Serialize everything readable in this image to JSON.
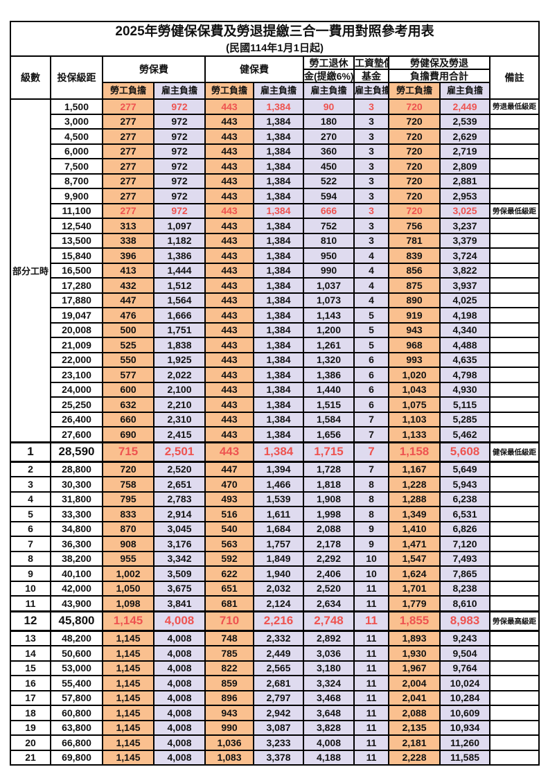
{
  "title": {
    "line1": "2025年勞健保保費及勞退提繳三合一費用對照參考用表",
    "line2": "(民國114年1月1日起)"
  },
  "colors": {
    "employee_bg": "#FAC08F",
    "employer_bg": "#DFDBEF",
    "value_red": "#EE5350",
    "note_red": "#FF3232",
    "ink": "#111111",
    "border": "#000000"
  },
  "table": {
    "header": {
      "level": "級數",
      "bracket": "投保級距",
      "labor_fee": "勞保費",
      "health_fee": "健保費",
      "pension_l1": "勞工退休",
      "pension_l2": "金(提繳6%)",
      "wage_fund_l1": "工資墊償",
      "wage_fund_l2": "基金",
      "total_l1": "勞健保及勞退",
      "total_l2": "負擔費用合計",
      "employee_burden": "勞工負擔",
      "employer_burden": "雇主負擔",
      "remark": "備註"
    },
    "part_time_label": "部分工時",
    "rows": [
      {
        "level": "",
        "bracket": "1,500",
        "values": [
          "277",
          "972",
          "443",
          "1,384",
          "90",
          "3",
          "720",
          "2,449"
        ],
        "note": "勞退最低級距",
        "highlight": "red"
      },
      {
        "level": "",
        "bracket": "3,000",
        "values": [
          "277",
          "972",
          "443",
          "1,384",
          "180",
          "3",
          "720",
          "2,539"
        ],
        "note": "",
        "highlight": ""
      },
      {
        "level": "",
        "bracket": "4,500",
        "values": [
          "277",
          "972",
          "443",
          "1,384",
          "270",
          "3",
          "720",
          "2,629"
        ],
        "note": "",
        "highlight": ""
      },
      {
        "level": "",
        "bracket": "6,000",
        "values": [
          "277",
          "972",
          "443",
          "1,384",
          "360",
          "3",
          "720",
          "2,719"
        ],
        "note": "",
        "highlight": ""
      },
      {
        "level": "",
        "bracket": "7,500",
        "values": [
          "277",
          "972",
          "443",
          "1,384",
          "450",
          "3",
          "720",
          "2,809"
        ],
        "note": "",
        "highlight": ""
      },
      {
        "level": "",
        "bracket": "8,700",
        "values": [
          "277",
          "972",
          "443",
          "1,384",
          "522",
          "3",
          "720",
          "2,881"
        ],
        "note": "",
        "highlight": ""
      },
      {
        "level": "",
        "bracket": "9,900",
        "values": [
          "277",
          "972",
          "443",
          "1,384",
          "594",
          "3",
          "720",
          "2,953"
        ],
        "note": "",
        "highlight": ""
      },
      {
        "level": "",
        "bracket": "11,100",
        "values": [
          "277",
          "972",
          "443",
          "1,384",
          "666",
          "3",
          "720",
          "3,025"
        ],
        "note": "勞保最低級距",
        "highlight": "red"
      },
      {
        "level": "",
        "bracket": "12,540",
        "values": [
          "313",
          "1,097",
          "443",
          "1,384",
          "752",
          "3",
          "756",
          "3,237"
        ],
        "note": "",
        "highlight": ""
      },
      {
        "level": "",
        "bracket": "13,500",
        "values": [
          "338",
          "1,182",
          "443",
          "1,384",
          "810",
          "3",
          "781",
          "3,379"
        ],
        "note": "",
        "highlight": ""
      },
      {
        "level": "",
        "bracket": "15,840",
        "values": [
          "396",
          "1,386",
          "443",
          "1,384",
          "950",
          "4",
          "839",
          "3,724"
        ],
        "note": "",
        "highlight": ""
      },
      {
        "level": "",
        "bracket": "16,500",
        "values": [
          "413",
          "1,444",
          "443",
          "1,384",
          "990",
          "4",
          "856",
          "3,822"
        ],
        "note": "",
        "highlight": ""
      },
      {
        "level": "",
        "bracket": "17,280",
        "values": [
          "432",
          "1,512",
          "443",
          "1,384",
          "1,037",
          "4",
          "875",
          "3,937"
        ],
        "note": "",
        "highlight": ""
      },
      {
        "level": "",
        "bracket": "17,880",
        "values": [
          "447",
          "1,564",
          "443",
          "1,384",
          "1,073",
          "4",
          "890",
          "4,025"
        ],
        "note": "",
        "highlight": ""
      },
      {
        "level": "",
        "bracket": "19,047",
        "values": [
          "476",
          "1,666",
          "443",
          "1,384",
          "1,143",
          "5",
          "919",
          "4,198"
        ],
        "note": "",
        "highlight": ""
      },
      {
        "level": "",
        "bracket": "20,008",
        "values": [
          "500",
          "1,751",
          "443",
          "1,384",
          "1,200",
          "5",
          "943",
          "4,340"
        ],
        "note": "",
        "highlight": ""
      },
      {
        "level": "",
        "bracket": "21,009",
        "values": [
          "525",
          "1,838",
          "443",
          "1,384",
          "1,261",
          "5",
          "968",
          "4,488"
        ],
        "note": "",
        "highlight": ""
      },
      {
        "level": "",
        "bracket": "22,000",
        "values": [
          "550",
          "1,925",
          "443",
          "1,384",
          "1,320",
          "6",
          "993",
          "4,635"
        ],
        "note": "",
        "highlight": ""
      },
      {
        "level": "",
        "bracket": "23,100",
        "values": [
          "577",
          "2,022",
          "443",
          "1,384",
          "1,386",
          "6",
          "1,020",
          "4,798"
        ],
        "note": "",
        "highlight": ""
      },
      {
        "level": "",
        "bracket": "24,000",
        "values": [
          "600",
          "2,100",
          "443",
          "1,384",
          "1,440",
          "6",
          "1,043",
          "4,930"
        ],
        "note": "",
        "highlight": ""
      },
      {
        "level": "",
        "bracket": "25,250",
        "values": [
          "632",
          "2,210",
          "443",
          "1,384",
          "1,515",
          "6",
          "1,075",
          "5,115"
        ],
        "note": "",
        "highlight": ""
      },
      {
        "level": "",
        "bracket": "26,400",
        "values": [
          "660",
          "2,310",
          "443",
          "1,384",
          "1,584",
          "7",
          "1,103",
          "5,285"
        ],
        "note": "",
        "highlight": ""
      },
      {
        "level": "",
        "bracket": "27,600",
        "values": [
          "690",
          "2,415",
          "443",
          "1,384",
          "1,656",
          "7",
          "1,133",
          "5,462"
        ],
        "note": "",
        "highlight": ""
      },
      {
        "level": "1",
        "bracket": "28,590",
        "values": [
          "715",
          "2,501",
          "443",
          "1,384",
          "1,715",
          "7",
          "1,158",
          "5,608"
        ],
        "note": "健保最低級距",
        "highlight": "red-big"
      },
      {
        "level": "2",
        "bracket": "28,800",
        "values": [
          "720",
          "2,520",
          "447",
          "1,394",
          "1,728",
          "7",
          "1,167",
          "5,649"
        ],
        "note": "",
        "highlight": ""
      },
      {
        "level": "3",
        "bracket": "30,300",
        "values": [
          "758",
          "2,651",
          "470",
          "1,466",
          "1,818",
          "8",
          "1,228",
          "5,943"
        ],
        "note": "",
        "highlight": ""
      },
      {
        "level": "4",
        "bracket": "31,800",
        "values": [
          "795",
          "2,783",
          "493",
          "1,539",
          "1,908",
          "8",
          "1,288",
          "6,238"
        ],
        "note": "",
        "highlight": ""
      },
      {
        "level": "5",
        "bracket": "33,300",
        "values": [
          "833",
          "2,914",
          "516",
          "1,611",
          "1,998",
          "8",
          "1,349",
          "6,531"
        ],
        "note": "",
        "highlight": ""
      },
      {
        "level": "6",
        "bracket": "34,800",
        "values": [
          "870",
          "3,045",
          "540",
          "1,684",
          "2,088",
          "9",
          "1,410",
          "6,826"
        ],
        "note": "",
        "highlight": ""
      },
      {
        "level": "7",
        "bracket": "36,300",
        "values": [
          "908",
          "3,176",
          "563",
          "1,757",
          "2,178",
          "9",
          "1,471",
          "7,120"
        ],
        "note": "",
        "highlight": ""
      },
      {
        "level": "8",
        "bracket": "38,200",
        "values": [
          "955",
          "3,342",
          "592",
          "1,849",
          "2,292",
          "10",
          "1,547",
          "7,493"
        ],
        "note": "",
        "highlight": ""
      },
      {
        "level": "9",
        "bracket": "40,100",
        "values": [
          "1,002",
          "3,509",
          "622",
          "1,940",
          "2,406",
          "10",
          "1,624",
          "7,865"
        ],
        "note": "",
        "highlight": ""
      },
      {
        "level": "10",
        "bracket": "42,000",
        "values": [
          "1,050",
          "3,675",
          "651",
          "2,032",
          "2,520",
          "11",
          "1,701",
          "8,238"
        ],
        "note": "",
        "highlight": ""
      },
      {
        "level": "11",
        "bracket": "43,900",
        "values": [
          "1,098",
          "3,841",
          "681",
          "2,124",
          "2,634",
          "11",
          "1,779",
          "8,610"
        ],
        "note": "",
        "highlight": ""
      },
      {
        "level": "12",
        "bracket": "45,800",
        "values": [
          "1,145",
          "4,008",
          "710",
          "2,216",
          "2,748",
          "11",
          "1,855",
          "8,983"
        ],
        "note": "勞保最高級距",
        "highlight": "red-big"
      },
      {
        "level": "13",
        "bracket": "48,200",
        "values": [
          "1,145",
          "4,008",
          "748",
          "2,332",
          "2,892",
          "11",
          "1,893",
          "9,243"
        ],
        "note": "",
        "highlight": ""
      },
      {
        "level": "14",
        "bracket": "50,600",
        "values": [
          "1,145",
          "4,008",
          "785",
          "2,449",
          "3,036",
          "11",
          "1,930",
          "9,504"
        ],
        "note": "",
        "highlight": ""
      },
      {
        "level": "15",
        "bracket": "53,000",
        "values": [
          "1,145",
          "4,008",
          "822",
          "2,565",
          "3,180",
          "11",
          "1,967",
          "9,764"
        ],
        "note": "",
        "highlight": ""
      },
      {
        "level": "16",
        "bracket": "55,400",
        "values": [
          "1,145",
          "4,008",
          "859",
          "2,681",
          "3,324",
          "11",
          "2,004",
          "10,024"
        ],
        "note": "",
        "highlight": ""
      },
      {
        "level": "17",
        "bracket": "57,800",
        "values": [
          "1,145",
          "4,008",
          "896",
          "2,797",
          "3,468",
          "11",
          "2,041",
          "10,284"
        ],
        "note": "",
        "highlight": ""
      },
      {
        "level": "18",
        "bracket": "60,800",
        "values": [
          "1,145",
          "4,008",
          "943",
          "2,942",
          "3,648",
          "11",
          "2,088",
          "10,609"
        ],
        "note": "",
        "highlight": ""
      },
      {
        "level": "19",
        "bracket": "63,800",
        "values": [
          "1,145",
          "4,008",
          "990",
          "3,087",
          "3,828",
          "11",
          "2,135",
          "10,934"
        ],
        "note": "",
        "highlight": ""
      },
      {
        "level": "20",
        "bracket": "66,800",
        "values": [
          "1,145",
          "4,008",
          "1,036",
          "3,233",
          "4,008",
          "11",
          "2,181",
          "11,260"
        ],
        "note": "",
        "highlight": ""
      },
      {
        "level": "21",
        "bracket": "69,800",
        "values": [
          "1,145",
          "4,008",
          "1,083",
          "3,378",
          "4,188",
          "11",
          "2,228",
          "11,585"
        ],
        "note": "",
        "highlight": ""
      }
    ]
  }
}
